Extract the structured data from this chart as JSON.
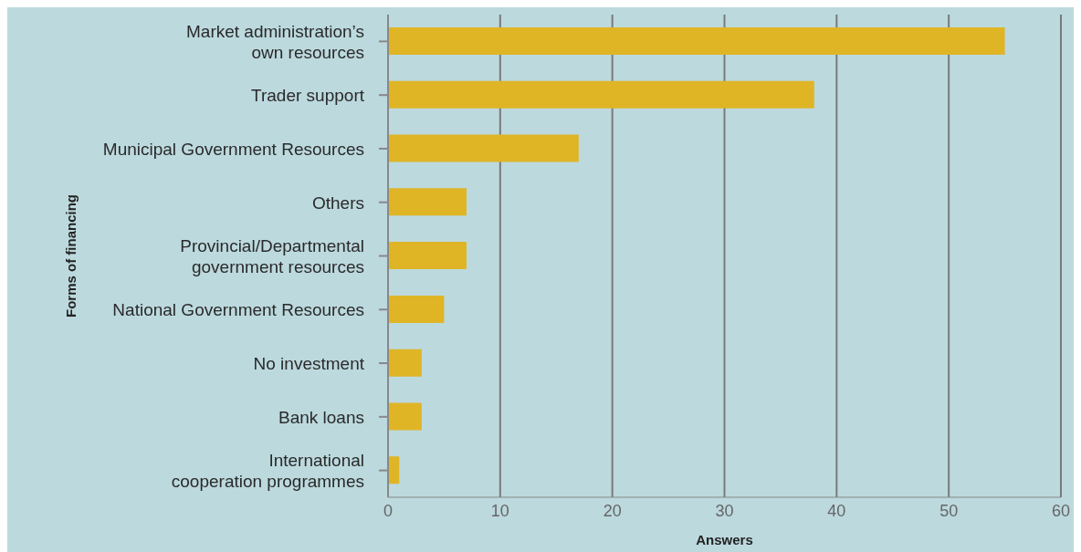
{
  "chart_data": {
    "type": "bar",
    "orientation": "horizontal",
    "xlabel": "Answers",
    "ylabel": "Forms of financing",
    "categories": [
      "Market administration’s own resources",
      "Trader support",
      "Municipal Government Resources",
      "Others",
      "Provincial/Departmental government resources",
      "National Government Resources",
      "No investment",
      "Bank loans",
      "International cooperation programmes"
    ],
    "values": [
      55,
      38,
      17,
      7,
      7,
      5,
      3,
      3,
      1
    ],
    "color": "#dfb526",
    "xlim": [
      0,
      60
    ],
    "xticks": [
      0,
      10,
      20,
      30,
      40,
      50,
      60
    ],
    "grid": "x"
  }
}
